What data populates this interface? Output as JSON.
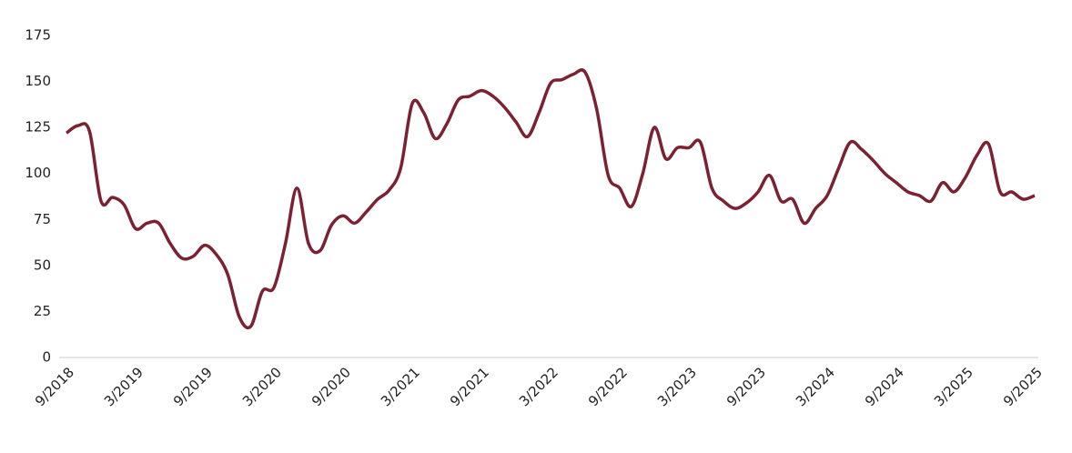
{
  "chart_data": {
    "type": "line",
    "categories": [
      "9/2018",
      null,
      null,
      null,
      null,
      null,
      "3/2019",
      null,
      null,
      null,
      null,
      null,
      "9/2019",
      null,
      null,
      null,
      null,
      null,
      "3/2020",
      null,
      null,
      null,
      null,
      null,
      "9/2020",
      null,
      null,
      null,
      null,
      null,
      "3/2021",
      null,
      null,
      null,
      null,
      null,
      "9/2021",
      null,
      null,
      null,
      null,
      null,
      "3/2022",
      null,
      null,
      null,
      null,
      null,
      "9/2022",
      null,
      null,
      null,
      null,
      null,
      "3/2023",
      null,
      null,
      null,
      null,
      null,
      "9/2023",
      null,
      null,
      null,
      null,
      null,
      "3/2024",
      null,
      null,
      null,
      null,
      null,
      "9/2024",
      null,
      null,
      null,
      null,
      null,
      "3/2025",
      null,
      null,
      null,
      null,
      null,
      "9/2025"
    ],
    "series": [
      {
        "color": "#7b2232",
        "values": [
          122,
          126,
          123,
          85,
          87,
          83,
          70,
          73,
          73,
          62,
          54,
          55,
          61,
          56,
          45,
          22,
          17,
          36,
          38,
          62,
          92,
          62,
          58,
          72,
          77,
          73,
          79,
          86,
          91,
          103,
          138,
          133,
          119,
          127,
          140,
          142,
          145,
          142,
          136,
          128,
          120,
          133,
          149,
          151,
          154,
          155,
          135,
          99,
          92,
          82,
          100,
          125,
          108,
          114,
          114,
          117,
          92,
          85,
          81,
          84,
          90,
          99,
          85,
          86,
          73,
          81,
          88,
          103,
          117,
          113,
          107,
          100,
          95,
          90,
          88,
          85,
          95,
          90,
          98,
          110,
          116,
          90,
          90,
          86,
          88
        ]
      }
    ],
    "ylim": [
      0,
      175
    ],
    "yticks": [
      0,
      25,
      50,
      75,
      100,
      125,
      150,
      175
    ],
    "grid": false
  }
}
